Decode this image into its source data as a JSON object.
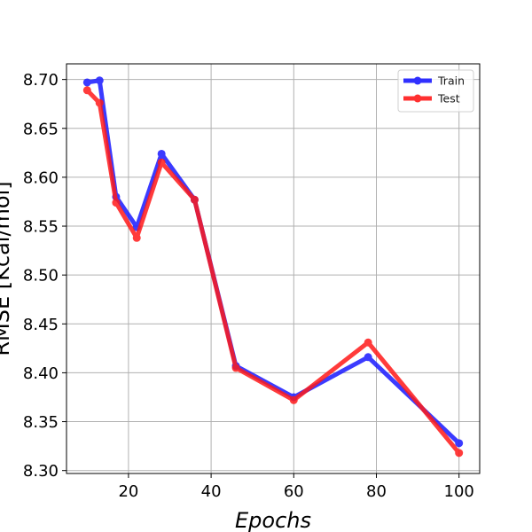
{
  "chart_data": {
    "type": "line",
    "title": "",
    "xlabel": "Epochs",
    "ylabel": "RMSE [Kcal/mol]",
    "xlim": [
      5,
      105
    ],
    "ylim": [
      8.297,
      8.716
    ],
    "xticks": [
      20,
      40,
      60,
      80,
      100
    ],
    "xtick_labels": [
      "20",
      "40",
      "60",
      "80",
      "100"
    ],
    "yticks": [
      8.3,
      8.35,
      8.4,
      8.45,
      8.5,
      8.55,
      8.6,
      8.65,
      8.7
    ],
    "ytick_labels": [
      "8.30",
      "8.35",
      "8.40",
      "8.45",
      "8.50",
      "8.55",
      "8.60",
      "8.65",
      "8.70"
    ],
    "grid": true,
    "legend_position": "top-right",
    "series": [
      {
        "name": "Train",
        "color": "#1a1aff",
        "x": [
          10,
          13,
          17,
          22,
          28,
          36,
          46,
          60,
          78,
          100
        ],
        "y": [
          8.697,
          8.699,
          8.58,
          8.549,
          8.624,
          8.577,
          8.407,
          8.375,
          8.416,
          8.328
        ]
      },
      {
        "name": "Test",
        "color": "#ff1a1a",
        "x": [
          10,
          13,
          17,
          22,
          28,
          36,
          46,
          60,
          78,
          100
        ],
        "y": [
          8.689,
          8.676,
          8.574,
          8.538,
          8.615,
          8.577,
          8.405,
          8.372,
          8.431,
          8.318
        ]
      }
    ]
  }
}
